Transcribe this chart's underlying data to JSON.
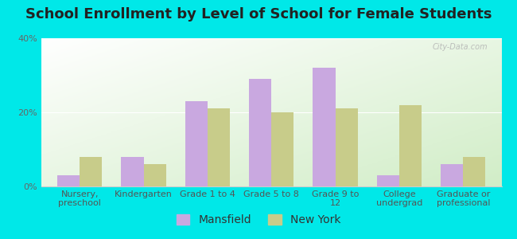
{
  "title": "School Enrollment by Level of School for Female Students",
  "categories": [
    "Nursery,\npreschool",
    "Kindergarten",
    "Grade 1 to 4",
    "Grade 5 to 8",
    "Grade 9 to\n12",
    "College\nundergrad",
    "Graduate or\nprofessional"
  ],
  "mansfield": [
    3,
    8,
    23,
    29,
    32,
    3,
    6
  ],
  "new_york": [
    8,
    6,
    21,
    20,
    21,
    22,
    8
  ],
  "mansfield_color": "#c9a8e0",
  "new_york_color": "#c8cc8a",
  "background_color": "#00e8e8",
  "ylim": [
    0,
    40
  ],
  "yticks": [
    0,
    20,
    40
  ],
  "ytick_labels": [
    "0%",
    "20%",
    "40%"
  ],
  "bar_width": 0.35,
  "legend_labels": [
    "Mansfield",
    "New York"
  ],
  "title_fontsize": 13,
  "tick_fontsize": 8,
  "legend_fontsize": 10
}
